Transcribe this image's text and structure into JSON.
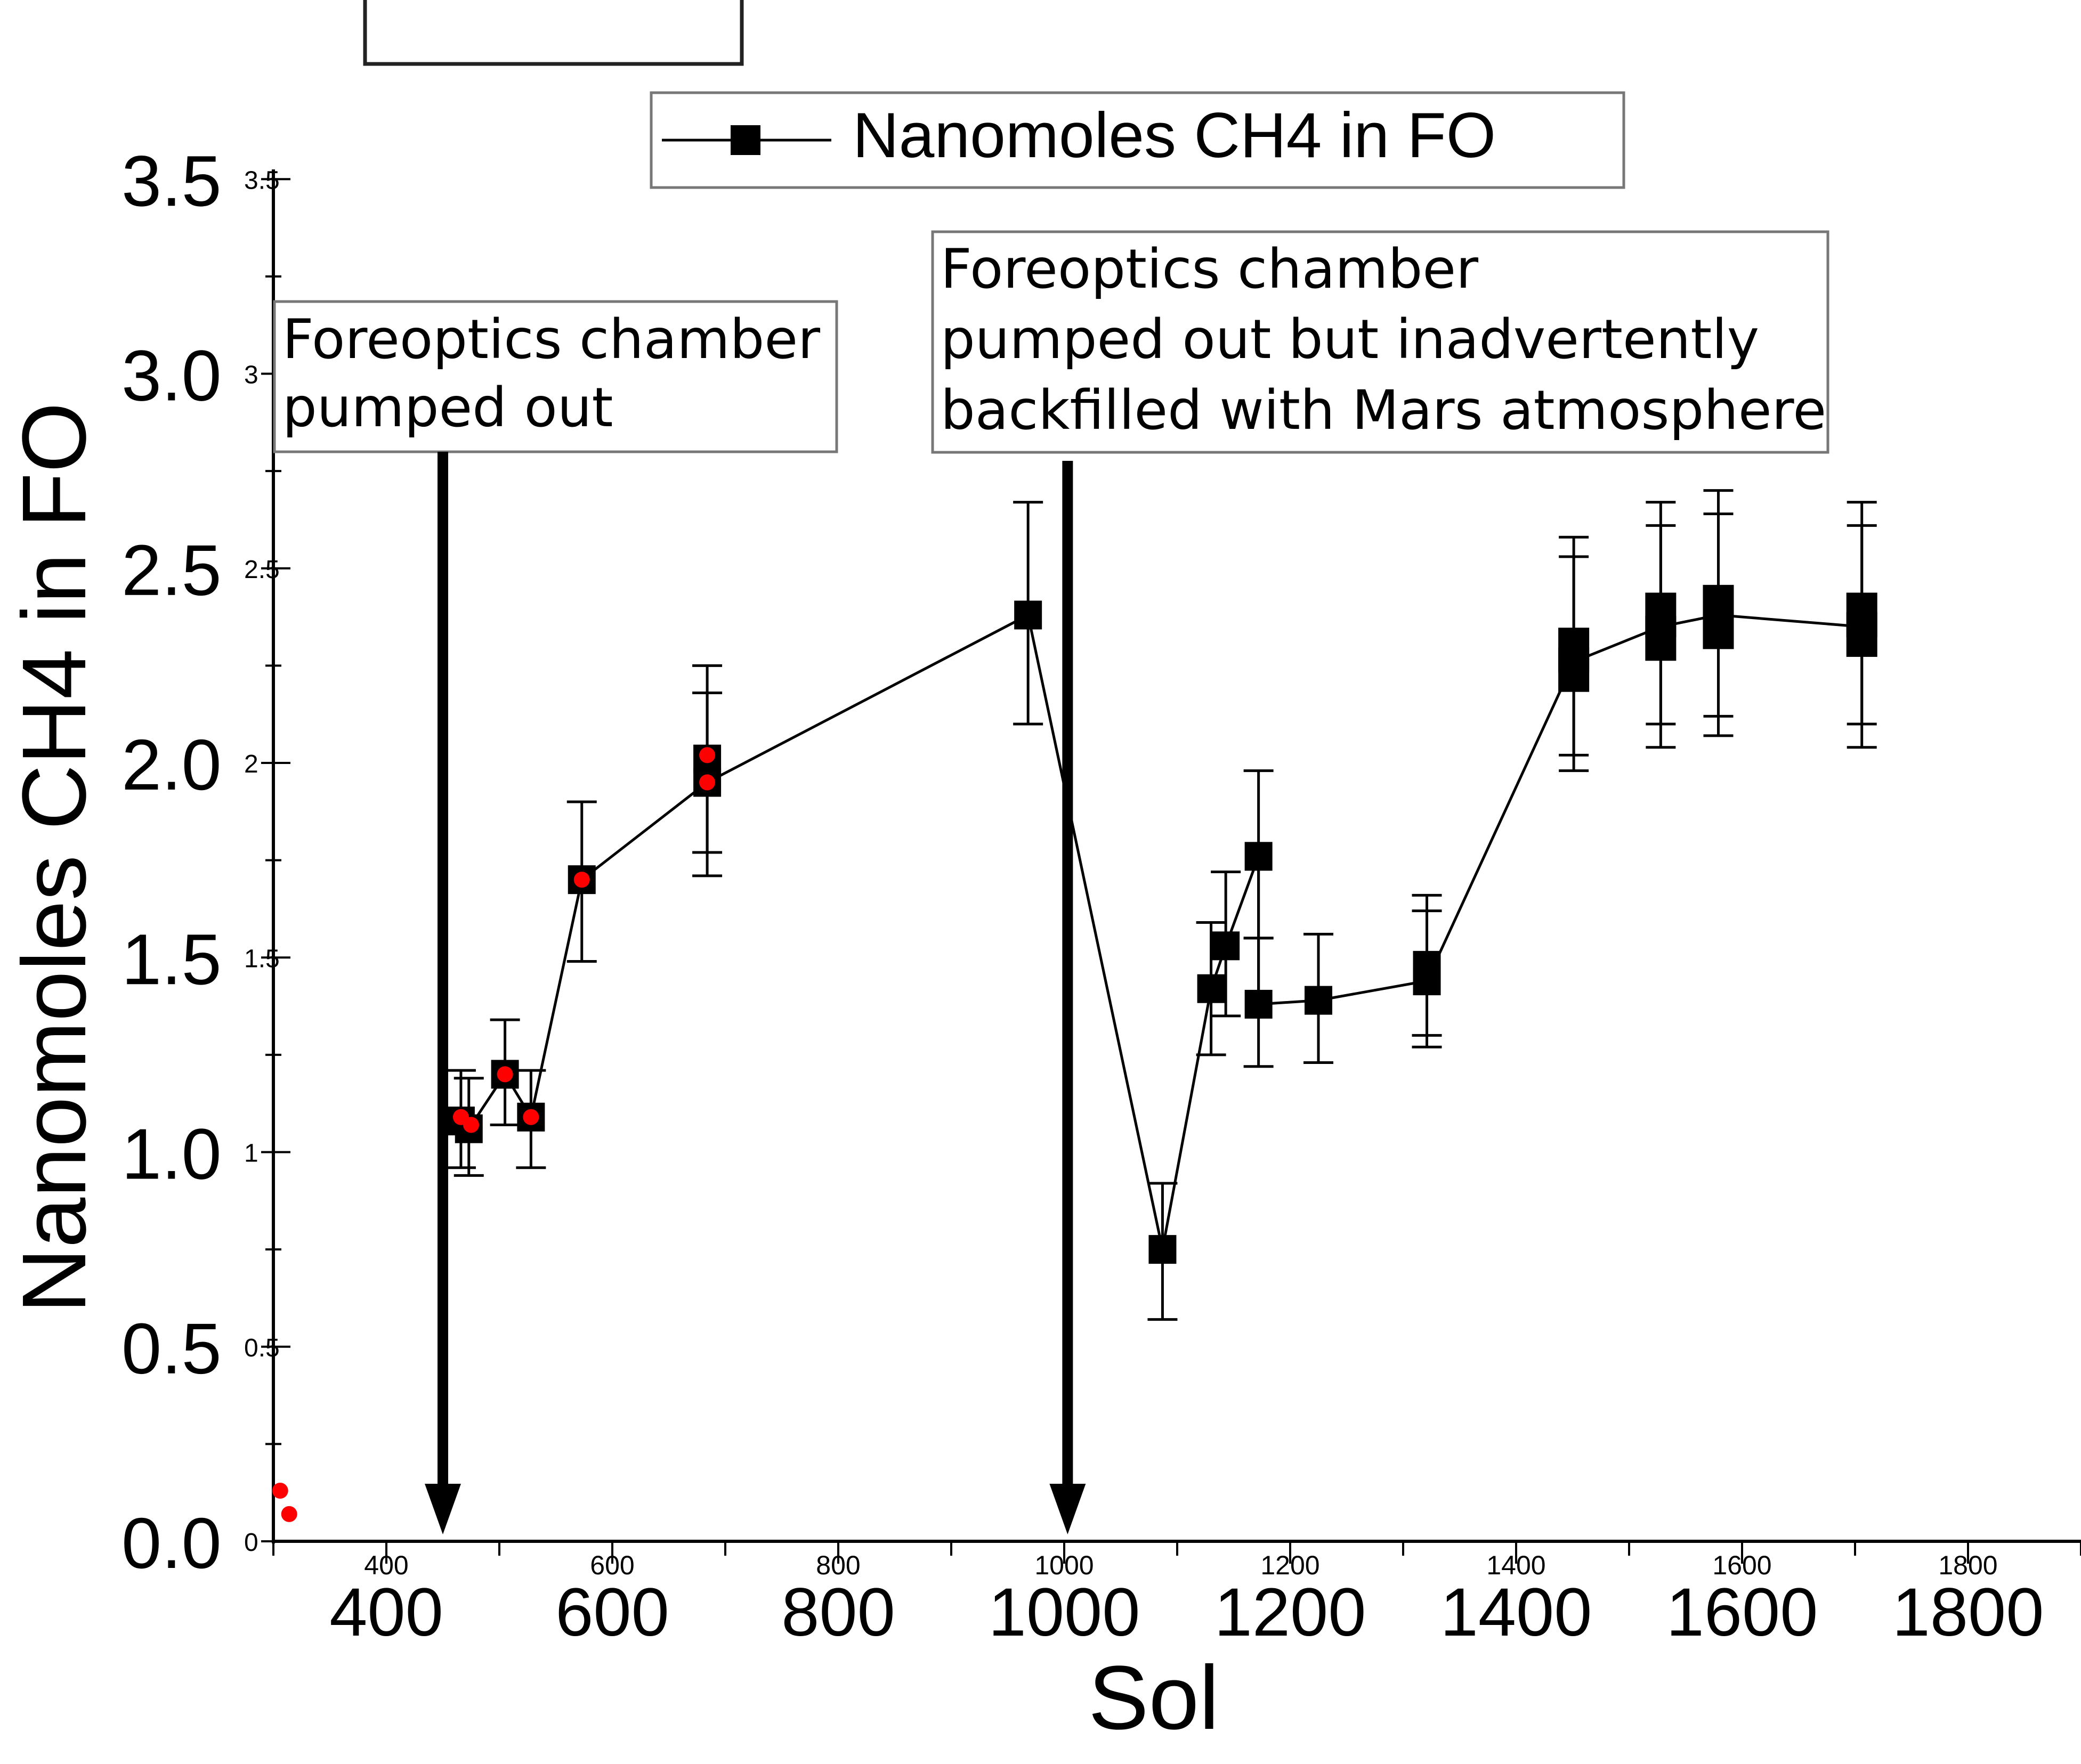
{
  "chart_data": {
    "type": "line",
    "xlabel": "Sol",
    "ylabel": "Nanomoles CH4 in FO",
    "xlim": [
      300,
      1900
    ],
    "ylim": [
      0,
      3.5
    ],
    "x_ticks": [
      {
        "value": 400,
        "label": "400"
      },
      {
        "value": 600,
        "label": "600"
      },
      {
        "value": 800,
        "label": "800"
      },
      {
        "value": 1000,
        "label": "1000"
      },
      {
        "value": 1200,
        "label": "1200"
      },
      {
        "value": 1400,
        "label": "1400"
      },
      {
        "value": 1600,
        "label": "1600"
      },
      {
        "value": 1800,
        "label": "1800"
      }
    ],
    "y_ticks": [
      {
        "value": 0,
        "label": "0.0",
        "small": "0"
      },
      {
        "value": 0.5,
        "label": "0.5",
        "small": "0.5"
      },
      {
        "value": 1.0,
        "label": "1.0",
        "small": "1"
      },
      {
        "value": 1.5,
        "label": "1.5",
        "small": "1.5"
      },
      {
        "value": 2.0,
        "label": "2.0",
        "small": "2"
      },
      {
        "value": 2.5,
        "label": "2.5",
        "small": "2.5"
      },
      {
        "value": 3.0,
        "label": "3.0",
        "small": "3"
      },
      {
        "value": 3.5,
        "label": "3.5",
        "small": "3.5"
      }
    ],
    "legend": {
      "label": "Nanomoles CH4 in FO",
      "position": "top"
    },
    "series": [
      {
        "name": "Nanomoles CH4 in FO",
        "points": [
          {
            "x": 466,
            "y": 1.08,
            "lo": 0.96,
            "hi": 1.21
          },
          {
            "x": 473,
            "y": 1.06,
            "lo": 0.94,
            "hi": 1.19
          },
          {
            "x": 505,
            "y": 1.2,
            "lo": 1.07,
            "hi": 1.34
          },
          {
            "x": 528,
            "y": 1.09,
            "lo": 0.96,
            "hi": 1.21
          },
          {
            "x": 573,
            "y": 1.7,
            "lo": 1.49,
            "hi": 1.9
          },
          {
            "x": 684,
            "y": 1.95,
            "lo": 1.71,
            "hi": 2.18
          },
          {
            "x": 684,
            "y": 2.01,
            "lo": 1.77,
            "hi": 2.25
          },
          {
            "x": 968,
            "y": 2.38,
            "lo": 2.1,
            "hi": 2.67
          },
          {
            "x": 1087,
            "y": 0.75,
            "lo": 0.57,
            "hi": 0.92
          },
          {
            "x": 1130,
            "y": 1.42,
            "lo": 1.25,
            "hi": 1.59
          },
          {
            "x": 1143,
            "y": 1.53,
            "lo": 1.35,
            "hi": 1.72
          },
          {
            "x": 1172,
            "y": 1.76,
            "lo": 1.55,
            "hi": 1.98
          },
          {
            "x": 1172,
            "y": 1.38,
            "lo": 1.22,
            "hi": 1.55
          },
          {
            "x": 1225,
            "y": 1.39,
            "lo": 1.23,
            "hi": 1.56
          },
          {
            "x": 1321,
            "y": 1.44,
            "lo": 1.27,
            "hi": 1.62
          },
          {
            "x": 1321,
            "y": 1.48,
            "lo": 1.3,
            "hi": 1.66
          },
          {
            "x": 1451,
            "y": 2.24,
            "lo": 1.98,
            "hi": 2.53
          },
          {
            "x": 1451,
            "y": 2.29,
            "lo": 2.02,
            "hi": 2.58
          },
          {
            "x": 1528,
            "y": 2.32,
            "lo": 2.04,
            "hi": 2.61
          },
          {
            "x": 1528,
            "y": 2.38,
            "lo": 2.1,
            "hi": 2.67
          },
          {
            "x": 1579,
            "y": 2.35,
            "lo": 2.07,
            "hi": 2.64
          },
          {
            "x": 1579,
            "y": 2.4,
            "lo": 2.12,
            "hi": 2.7
          },
          {
            "x": 1706,
            "y": 2.33,
            "lo": 2.04,
            "hi": 2.61
          },
          {
            "x": 1706,
            "y": 2.38,
            "lo": 2.1,
            "hi": 2.67
          }
        ],
        "line_path": [
          [
            466,
            1.08
          ],
          [
            473,
            1.06
          ],
          [
            505,
            1.2
          ],
          [
            528,
            1.09
          ],
          [
            573,
            1.7
          ],
          [
            684,
            1.95
          ],
          [
            968,
            2.38
          ],
          [
            1087,
            0.75
          ],
          [
            1130,
            1.42
          ],
          [
            1143,
            1.53
          ],
          [
            1172,
            1.76
          ],
          [
            1172,
            1.38
          ],
          [
            1225,
            1.39
          ],
          [
            1321,
            1.44
          ],
          [
            1451,
            2.26
          ],
          [
            1528,
            2.35
          ],
          [
            1579,
            2.38
          ],
          [
            1706,
            2.35
          ]
        ]
      }
    ],
    "red_markers": [
      {
        "x": 466,
        "y": 1.09
      },
      {
        "x": 475,
        "y": 1.07
      },
      {
        "x": 505,
        "y": 1.2
      },
      {
        "x": 528,
        "y": 1.09
      },
      {
        "x": 573,
        "y": 1.7
      },
      {
        "x": 684,
        "y": 1.95
      },
      {
        "x": 684,
        "y": 2.02
      },
      {
        "x": 306,
        "y": 0.13
      },
      {
        "x": 314,
        "y": 0.07
      }
    ],
    "annotations": [
      {
        "lines": [
          "Foreoptics chamber",
          "pumped out"
        ],
        "arrow_x": 450
      },
      {
        "lines": [
          "Foreoptics chamber",
          "pumped out but inadvertently",
          "backfilled with Mars atmosphere"
        ],
        "arrow_x": 1003
      }
    ],
    "colors": {
      "series": "#000000",
      "markers_red": "#ff0000",
      "box_border": "#888888"
    }
  }
}
